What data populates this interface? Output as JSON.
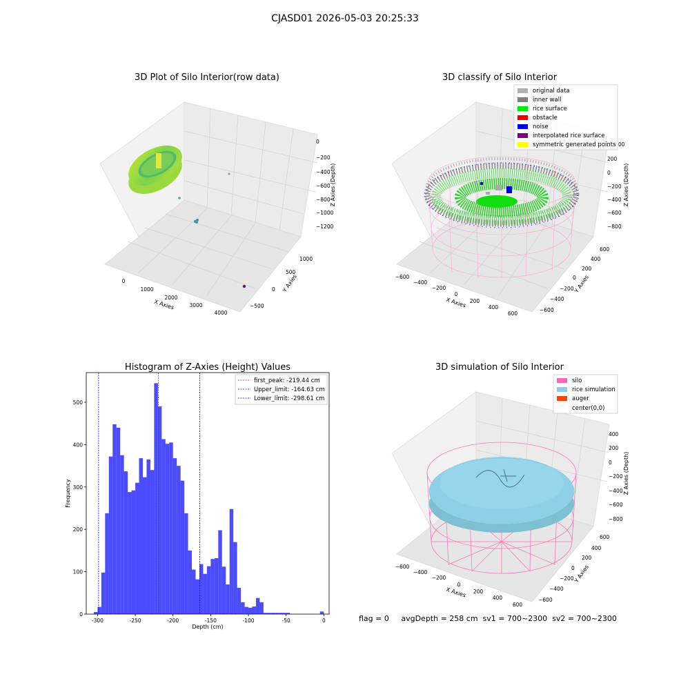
{
  "figure_title": "CJASD01 2026-05-03 20:25:33",
  "panels": {
    "p1": {
      "title": "3D Plot of Silo Interior(row data)",
      "xlabel": "X Axies",
      "ylabel": "Y Axies",
      "zlabel": "Z Axies (Depth)",
      "xticks": [
        "0",
        "1000",
        "2000",
        "3000",
        "4000"
      ],
      "yticks": [
        "1000",
        "500",
        "0",
        "−500"
      ],
      "zticks": [
        "0",
        "−200",
        "−400",
        "−600",
        "−800",
        "−1000",
        "−1200"
      ]
    },
    "p2": {
      "title": "3D classify of Silo Interior",
      "xlabel": "X Axies",
      "ylabel": "Y Axies",
      "zlabel": "Z Axies (Depth)",
      "xticks": [
        "−600",
        "−400",
        "−200",
        "0",
        "200",
        "400",
        "600"
      ],
      "yticks": [
        "600",
        "400",
        "200",
        "0",
        "−200",
        "−400",
        "−600"
      ],
      "zticks": [
        "200",
        "0",
        "−200",
        "−400",
        "−600",
        "−800"
      ],
      "legend": [
        {
          "label": "original data",
          "color": "#b0b0b0"
        },
        {
          "label": "inner wall",
          "color": "#808080"
        },
        {
          "label": "rice surface",
          "color": "#00ee00"
        },
        {
          "label": "obstacle",
          "color": "#ee0000"
        },
        {
          "label": "noise",
          "color": "#0000dd"
        },
        {
          "label": "interpolated rice surface",
          "color": "#800080"
        },
        {
          "label": "symmetric generated points",
          "color": "#ffff00"
        }
      ],
      "z_tick_clipped": "00"
    },
    "p3": {
      "title": "Histogram of Z-Axies (Height) Values",
      "xlabel": "Depth (cm)",
      "ylabel": "Frequency",
      "legend": [
        {
          "label": "first_peak: -219.44 cm",
          "color": "#ff0000"
        },
        {
          "label": "Upper_limit: -164.63 cm",
          "color": "#0000ff"
        },
        {
          "label": "Lower_limit: -298.61 cm",
          "color": "#0000ff"
        }
      ]
    },
    "p4": {
      "title": "3D simulation of Silo Interior",
      "xlabel": "X Axies",
      "ylabel": "Y Axies",
      "zlabel": "Z Axies (Depth)",
      "xticks": [
        "−600",
        "−400",
        "−200",
        "0",
        "200",
        "400",
        "600"
      ],
      "yticks": [
        "600",
        "400",
        "200",
        "0",
        "−200",
        "−400",
        "−600"
      ],
      "zticks": [
        "400",
        "200",
        "0",
        "−200",
        "−400",
        "−600",
        "−800"
      ],
      "legend": [
        {
          "label": "silo",
          "color": "#ff69b4"
        },
        {
          "label": "rice simulation",
          "color": "#87ceeb"
        },
        {
          "label": "auger",
          "color": "#ff4500"
        },
        {
          "label": "center(0,0)",
          "color": ""
        }
      ]
    }
  },
  "footer": "flag = 0     avgDepth = 258 cm  sv1 = 700~2300  sv2 = 700~2300",
  "chart_data": [
    {
      "type": "scatter",
      "title": "3D Plot of Silo Interior(row data)",
      "xlabel": "X Axies",
      "ylabel": "Y Axies",
      "zlabel": "Z Axies (Depth)",
      "note": "3D point cloud; ring of points plus sparse outliers",
      "grid": true
    },
    {
      "type": "scatter",
      "title": "3D classify of Silo Interior",
      "xlabel": "X Axies",
      "ylabel": "Y Axies",
      "zlabel": "Z Axies (Depth)",
      "grid": true,
      "legend_position": "top-right"
    },
    {
      "type": "bar",
      "title": "Histogram of Z-Axies (Height) Values",
      "xlabel": "Depth (cm)",
      "ylabel": "Frequency",
      "xlim": [
        -315,
        7
      ],
      "ylim": [
        0,
        570
      ],
      "xticks": [
        -300,
        -250,
        -200,
        -150,
        -100,
        -50,
        0
      ],
      "yticks": [
        0,
        100,
        200,
        300,
        400,
        500
      ],
      "bin_width": 5,
      "bins": [
        {
          "x": -302.5,
          "v": 5
        },
        {
          "x": -297.5,
          "v": 17
        },
        {
          "x": -292.5,
          "v": 98
        },
        {
          "x": -287.5,
          "v": 238
        },
        {
          "x": -282.5,
          "v": 372
        },
        {
          "x": -277.5,
          "v": 448
        },
        {
          "x": -272.5,
          "v": 440
        },
        {
          "x": -267.5,
          "v": 375
        },
        {
          "x": -262.5,
          "v": 337
        },
        {
          "x": -257.5,
          "v": 288
        },
        {
          "x": -252.5,
          "v": 292
        },
        {
          "x": -247.5,
          "v": 310
        },
        {
          "x": -242.5,
          "v": 368
        },
        {
          "x": -237.5,
          "v": 323
        },
        {
          "x": -232.5,
          "v": 365
        },
        {
          "x": -227.5,
          "v": 340
        },
        {
          "x": -222.5,
          "v": 545
        },
        {
          "x": -217.5,
          "v": 490
        },
        {
          "x": -212.5,
          "v": 413
        },
        {
          "x": -207.5,
          "v": 402
        },
        {
          "x": -202.5,
          "v": 405
        },
        {
          "x": -197.5,
          "v": 368
        },
        {
          "x": -192.5,
          "v": 350
        },
        {
          "x": -187.5,
          "v": 315
        },
        {
          "x": -182.5,
          "v": 238
        },
        {
          "x": -177.5,
          "v": 150
        },
        {
          "x": -172.5,
          "v": 105
        },
        {
          "x": -167.5,
          "v": 82
        },
        {
          "x": -162.5,
          "v": 118
        },
        {
          "x": -157.5,
          "v": 95
        },
        {
          "x": -152.5,
          "v": 113
        },
        {
          "x": -147.5,
          "v": 130
        },
        {
          "x": -142.5,
          "v": 132
        },
        {
          "x": -137.5,
          "v": 198
        },
        {
          "x": -132.5,
          "v": 112
        },
        {
          "x": -127.5,
          "v": 70
        },
        {
          "x": -122.5,
          "v": 248
        },
        {
          "x": -117.5,
          "v": 170
        },
        {
          "x": -112.5,
          "v": 62
        },
        {
          "x": -107.5,
          "v": 28
        },
        {
          "x": -102.5,
          "v": 17
        },
        {
          "x": -97.5,
          "v": 15
        },
        {
          "x": -92.5,
          "v": 18
        },
        {
          "x": -87.5,
          "v": 38
        },
        {
          "x": -82.5,
          "v": 28
        },
        {
          "x": -77.5,
          "v": 3
        },
        {
          "x": -72.5,
          "v": 3
        },
        {
          "x": -67.5,
          "v": 3
        },
        {
          "x": -62.5,
          "v": 3
        },
        {
          "x": -57.5,
          "v": 3
        },
        {
          "x": -52.5,
          "v": 3
        },
        {
          "x": -47.5,
          "v": 3
        },
        {
          "x": -2.5,
          "v": 6
        }
      ],
      "color": "#0000ff",
      "vlines": [
        {
          "x": -219.44,
          "color": "#ff0000"
        },
        {
          "x": -164.63,
          "color": "#0000ff"
        },
        {
          "x": -298.61,
          "color": "#0000ff"
        }
      ],
      "legend_position": "top-right"
    },
    {
      "type": "scatter",
      "title": "3D simulation of Silo Interior",
      "xlabel": "X Axies",
      "ylabel": "Y Axies",
      "zlabel": "Z Axies (Depth)",
      "grid": true,
      "legend_position": "top-right"
    }
  ]
}
